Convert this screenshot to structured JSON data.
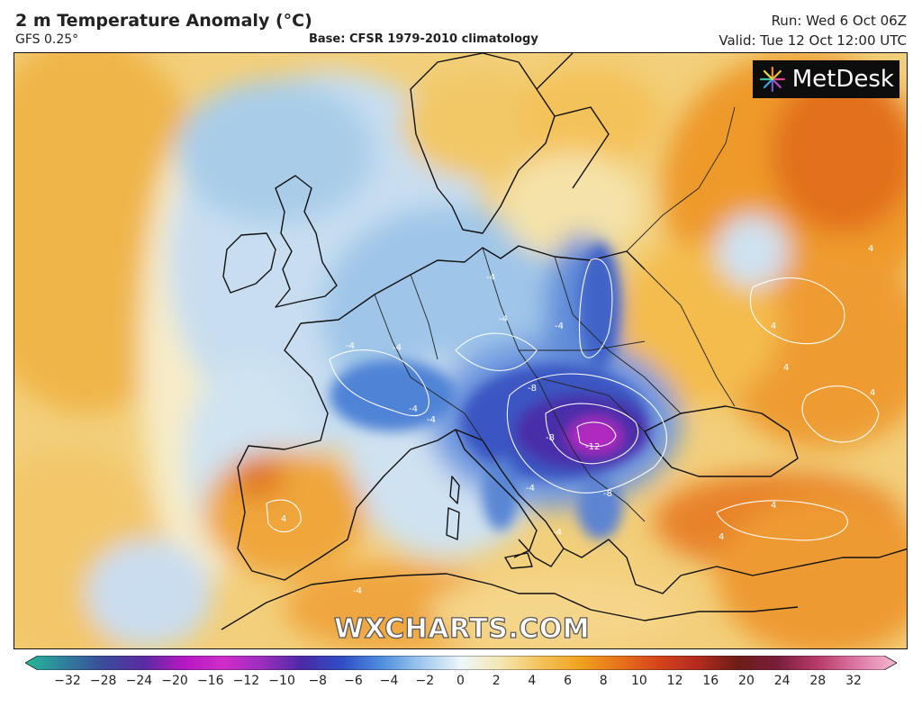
{
  "header": {
    "title": "2 m Temperature Anomaly (°C)",
    "model": "GFS 0.25°",
    "base": "Base: CFSR 1979-2010 climatology",
    "run": "Run: Wed 6 Oct 06Z",
    "valid": "Valid: Tue 12 Oct 12:00 UTC"
  },
  "logo": {
    "text": "MetDesk",
    "icon": "starburst-icon"
  },
  "watermark": "WXCHARTS.COM",
  "colorbar": {
    "ticks": [
      "−32",
      "−28",
      "−24",
      "−20",
      "−16",
      "−12",
      "−10",
      "−8",
      "−6",
      "−4",
      "−2",
      "0",
      "2",
      "4",
      "6",
      "8",
      "10",
      "12",
      "16",
      "20",
      "24",
      "28",
      "32"
    ],
    "colors": [
      "#26b89a",
      "#2f7f9b",
      "#3b4a9b",
      "#5b2aa2",
      "#b418c4",
      "#d02cc8",
      "#9a2dbf",
      "#4a2aa6",
      "#2f4fc4",
      "#4f8ee0",
      "#9fc8ee",
      "#eef6fb",
      "#f5e7b0",
      "#f3c35a",
      "#f1a21f",
      "#e8731a",
      "#d6431a",
      "#b22a1e",
      "#6e1d16",
      "#7a1d3d",
      "#b83a6a",
      "#de78a4",
      "#f5b9d3"
    ]
  },
  "map": {
    "contour_labels": [
      "-4",
      "-4",
      "-4",
      "-4",
      "-4",
      "-4",
      "-4",
      "-4",
      "-4",
      "-8",
      "-8",
      "-8",
      "-12",
      "-4",
      "4",
      "4",
      "4",
      "4",
      "4",
      "4",
      "4"
    ]
  }
}
